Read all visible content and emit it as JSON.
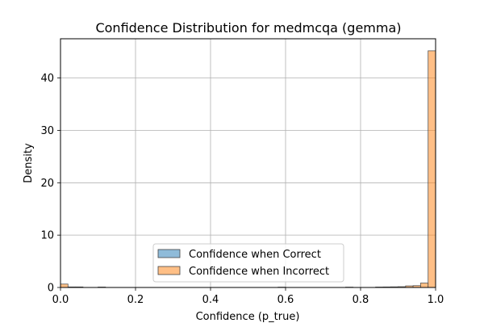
{
  "chart_data": {
    "type": "bar",
    "title": "Confidence Distribution for medmcqa (gemma)",
    "xlabel": "Confidence (p_true)",
    "ylabel": "Density",
    "xlim": [
      0,
      1
    ],
    "ylim": [
      0,
      47.5
    ],
    "xticks": [
      "0.0",
      "0.2",
      "0.4",
      "0.6",
      "0.8",
      "1.0"
    ],
    "yticks": [
      "0",
      "10",
      "20",
      "30",
      "40"
    ],
    "grid": true,
    "legend_position": "lower-center",
    "bin_width": 0.02,
    "series": [
      {
        "name": "Confidence when Correct",
        "color": "#1f77b4",
        "bins": []
      },
      {
        "name": "Confidence when Incorrect",
        "color": "#ff7f0e",
        "bins": [
          {
            "x": 0.0,
            "density": 0.65
          },
          {
            "x": 0.02,
            "density": 0.1
          },
          {
            "x": 0.04,
            "density": 0.1
          },
          {
            "x": 0.1,
            "density": 0.08
          },
          {
            "x": 0.58,
            "density": 0.06
          },
          {
            "x": 0.76,
            "density": 0.06
          },
          {
            "x": 0.84,
            "density": 0.08
          },
          {
            "x": 0.86,
            "density": 0.1
          },
          {
            "x": 0.88,
            "density": 0.12
          },
          {
            "x": 0.9,
            "density": 0.15
          },
          {
            "x": 0.92,
            "density": 0.3
          },
          {
            "x": 0.94,
            "density": 0.35
          },
          {
            "x": 0.96,
            "density": 0.85
          },
          {
            "x": 0.98,
            "density": 45.2
          }
        ]
      }
    ]
  }
}
